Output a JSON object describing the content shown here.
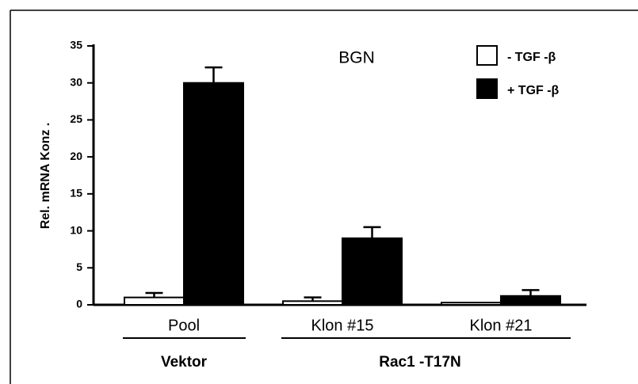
{
  "chart_data": {
    "type": "bar",
    "title": "BGN",
    "y_label": "Rel. mRNA Konz .",
    "categories": [
      "Pool",
      "Klon #15",
      "Klon #21"
    ],
    "groups": [
      "Vektor",
      "Rac1 -T17N"
    ],
    "series": [
      {
        "name": "- TGF -β",
        "color": "#ffffff",
        "values": [
          1.0,
          0.5,
          0.3
        ],
        "errors": [
          0.6,
          0.5,
          null
        ]
      },
      {
        "name": "+ TGF -β",
        "color": "#000000",
        "values": [
          30.0,
          9.0,
          1.2
        ],
        "errors": [
          2.1,
          1.5,
          0.8
        ]
      }
    ],
    "ylim": [
      0,
      35
    ],
    "yticks": [
      0,
      5,
      10,
      15,
      20,
      25,
      30,
      35
    ],
    "grid": false,
    "legend": "top-right"
  }
}
